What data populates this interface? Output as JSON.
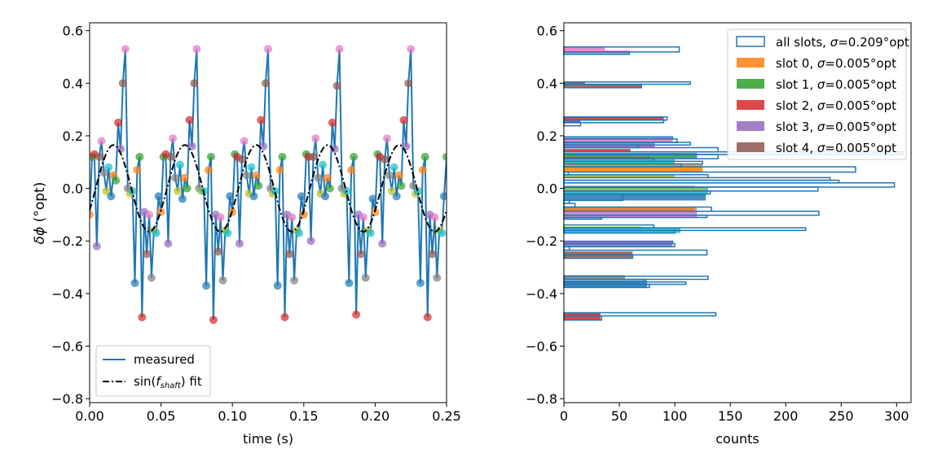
{
  "colors": [
    "#1f77b4",
    "#ff7f0e",
    "#2ca02c",
    "#d62728",
    "#9467bd",
    "#8c564b",
    "#e377c2",
    "#7f7f7f",
    "#bcbd22",
    "#17becf"
  ],
  "chart_data": [
    {
      "type": "line",
      "xlabel": "time (s)",
      "ylabel_symbol": "δϕ",
      "ylabel_unit": " (°opt)",
      "xlim": [
        0,
        0.25
      ],
      "ylim": [
        -0.815,
        0.63
      ],
      "xticks": [
        "0.00",
        "0.05",
        "0.10",
        "0.15",
        "0.20",
        "0.25"
      ],
      "yticks": [
        "−0.8",
        "−0.6",
        "−0.4",
        "−0.2",
        "0.0",
        "0.2",
        "0.4",
        "0.6"
      ],
      "legend_position": "lower-left",
      "legend": [
        "measured",
        "sin(",
        "f",
        "shaft",
        ") fit"
      ],
      "series": [
        {
          "name": "measured",
          "color": "#1f77b4",
          "x": [
            0,
            0.0017,
            0.0033,
            0.005,
            0.0067,
            0.0083,
            0.01,
            0.0117,
            0.0133,
            0.015,
            0.0167,
            0.0183,
            0.02,
            0.0217,
            0.0233,
            0.025,
            0.0267,
            0.0283,
            0.03,
            0.0317,
            0.0333,
            0.035,
            0.0367,
            0.0383,
            0.04,
            0.0417,
            0.0433,
            0.045,
            0.0467,
            0.0483,
            0.05,
            0.0517,
            0.0533,
            0.055,
            0.0567,
            0.0583,
            0.06,
            0.0617,
            0.0633,
            0.065,
            0.0667,
            0.0683,
            0.07,
            0.0717,
            0.0733,
            0.075,
            0.0767,
            0.0783,
            0.08,
            0.0817,
            0.0833,
            0.085,
            0.0867,
            0.0883,
            0.09,
            0.0917,
            0.0933,
            0.095,
            0.0967,
            0.0983,
            0.1,
            0.1017,
            0.1033,
            0.105,
            0.1067,
            0.1083,
            0.11,
            0.1117,
            0.1133,
            0.115,
            0.1167,
            0.1183,
            0.12,
            0.1217,
            0.1233,
            0.125,
            0.1267,
            0.1283,
            0.13,
            0.1317,
            0.1333,
            0.135,
            0.1367,
            0.1383,
            0.14,
            0.1417,
            0.1433,
            0.145,
            0.1467,
            0.1483,
            0.15,
            0.1517,
            0.1533,
            0.155,
            0.1567,
            0.1583,
            0.16,
            0.1617,
            0.1633,
            0.165,
            0.1667,
            0.1683,
            0.17,
            0.1717,
            0.1733,
            0.175,
            0.1767,
            0.1783,
            0.18,
            0.1817,
            0.1833,
            0.185,
            0.1867,
            0.1883,
            0.19,
            0.1917,
            0.1933,
            0.195,
            0.1967,
            0.1983,
            0.2,
            0.2017,
            0.2033,
            0.205,
            0.2067,
            0.2083,
            0.21,
            0.2117,
            0.2133,
            0.215,
            0.2167,
            0.2183,
            0.22,
            0.2217,
            0.2233,
            0.225,
            0.2267,
            0.2283,
            0.23,
            0.2317,
            0.2333,
            0.235,
            0.2367,
            0.2383,
            0.24,
            0.2417,
            0.2433,
            0.245,
            0.2467,
            0.2483,
            0.25
          ],
          "y": [
            -0.1,
            0.12,
            0.13,
            -0.22,
            0.12,
            0.18,
            0.06,
            -0.01,
            0.08,
            -0.03,
            0.05,
            0.03,
            0.25,
            0.15,
            0.4,
            0.53,
            0.0,
            -0.02,
            -0.01,
            -0.36,
            0.07,
            0.12,
            -0.49,
            -0.09,
            -0.25,
            -0.1,
            -0.34,
            -0.16,
            -0.17,
            -0.03,
            -0.09,
            0.12,
            0.13,
            -0.21,
            0.12,
            0.19,
            0.04,
            -0.01,
            0.09,
            -0.04,
            0.04,
            0.0,
            0.26,
            0.16,
            0.4,
            0.53,
            0.0,
            -0.01,
            -0.01,
            -0.37,
            0.07,
            0.12,
            -0.5,
            -0.1,
            -0.24,
            -0.11,
            -0.35,
            -0.16,
            -0.17,
            -0.03,
            -0.09,
            0.13,
            0.12,
            -0.21,
            0.11,
            0.18,
            0.05,
            -0.02,
            0.08,
            -0.03,
            0.05,
            0.01,
            0.26,
            0.16,
            0.4,
            0.53,
            0.0,
            -0.02,
            -0.01,
            -0.37,
            0.07,
            0.12,
            -0.49,
            -0.1,
            -0.25,
            -0.11,
            -0.35,
            -0.16,
            -0.17,
            -0.03,
            -0.1,
            0.13,
            0.12,
            -0.2,
            0.12,
            0.19,
            0.04,
            -0.02,
            0.09,
            -0.03,
            0.04,
            0.0,
            0.25,
            0.15,
            0.39,
            0.53,
            0.0,
            -0.02,
            -0.01,
            -0.36,
            0.07,
            0.12,
            -0.48,
            -0.1,
            -0.25,
            -0.11,
            -0.34,
            -0.16,
            -0.17,
            -0.04,
            -0.09,
            0.13,
            0.12,
            -0.21,
            0.11,
            0.19,
            0.05,
            -0.01,
            0.08,
            -0.03,
            0.05,
            0.01,
            0.26,
            0.16,
            0.4,
            0.53,
            0.01,
            -0.02,
            -0.01,
            -0.36,
            0.07,
            0.12,
            -0.49,
            -0.1,
            -0.25,
            -0.11,
            -0.34,
            -0.16,
            -0.17,
            -0.03,
            0.12
          ],
          "slot": [
            1,
            2,
            3,
            4,
            5,
            6,
            7,
            8,
            9,
            0,
            1,
            2,
            3,
            4,
            5,
            6,
            7,
            8,
            9,
            0,
            1,
            2,
            3,
            4,
            5,
            6,
            7,
            8,
            9,
            0,
            1,
            2,
            3,
            4,
            5,
            6,
            7,
            8,
            9,
            0,
            1,
            2,
            3,
            4,
            5,
            6,
            7,
            8,
            9,
            0,
            1,
            2,
            3,
            4,
            5,
            6,
            7,
            8,
            9,
            0,
            1,
            2,
            3,
            4,
            5,
            6,
            7,
            8,
            9,
            0,
            1,
            2,
            3,
            4,
            5,
            6,
            7,
            8,
            9,
            0,
            1,
            2,
            3,
            4,
            5,
            6,
            7,
            8,
            9,
            0,
            1,
            2,
            3,
            4,
            5,
            6,
            7,
            8,
            9,
            0,
            1,
            2,
            3,
            4,
            5,
            6,
            7,
            8,
            9,
            0,
            1,
            2,
            3,
            4,
            5,
            6,
            7,
            8,
            9,
            0,
            1,
            2,
            3,
            4,
            5,
            6,
            7,
            8,
            9,
            0,
            1,
            2,
            3,
            4,
            5,
            6,
            7,
            8,
            9,
            0,
            1,
            2,
            3,
            4,
            5,
            6,
            7,
            8,
            9,
            0,
            2
          ]
        },
        {
          "name": "sin(f_shaft) fit",
          "color": "#000000",
          "style": "dash-dot",
          "amplitude": 0.165,
          "period_s": 0.05,
          "peak_time_s": 0.0167
        }
      ]
    },
    {
      "type": "histogram",
      "orientation": "horizontal",
      "xlabel": "counts",
      "xlim": [
        0,
        313
      ],
      "ylim": [
        -0.815,
        0.63
      ],
      "xticks": [
        "0",
        "50",
        "100",
        "150",
        "200",
        "250",
        "300"
      ],
      "yticks": [
        "−0.8",
        "−0.6",
        "−0.4",
        "−0.2",
        "0.0",
        "0.2",
        "0.4",
        "0.6"
      ],
      "legend_position": "top-right",
      "legend": [
        {
          "label": "all slots, ",
          "sigma": "=0.209°opt",
          "style": "outline"
        },
        {
          "label": "slot 0, ",
          "sigma": "=0.005°opt",
          "slot": 1
        },
        {
          "label": "slot 1, ",
          "sigma": "=0.005°opt",
          "slot": 2
        },
        {
          "label": "slot 2, ",
          "sigma": "=0.005°opt",
          "slot": 3
        },
        {
          "label": "slot 3, ",
          "sigma": "=0.005°opt",
          "slot": 4
        },
        {
          "label": "slot 4, ",
          "sigma": "=0.005°opt",
          "slot": 5
        }
      ],
      "sigma_symbol": "σ",
      "all_slots_bins": [
        [
          0.519,
          0.538,
          104
        ],
        [
          0.51,
          0.519,
          59
        ],
        [
          0.383,
          0.396,
          70
        ],
        [
          0.396,
          0.405,
          114
        ],
        [
          0.26,
          0.272,
          93
        ],
        [
          0.25,
          0.26,
          90
        ],
        [
          0.238,
          0.25,
          15
        ],
        [
          0.188,
          0.196,
          98
        ],
        [
          0.175,
          0.188,
          102
        ],
        [
          0.165,
          0.175,
          114
        ],
        [
          0.155,
          0.165,
          67
        ],
        [
          0.139,
          0.155,
          139
        ],
        [
          0.129,
          0.139,
          306
        ],
        [
          0.113,
          0.129,
          139
        ],
        [
          0.103,
          0.113,
          81
        ],
        [
          0.093,
          0.103,
          125
        ],
        [
          0.082,
          0.093,
          106
        ],
        [
          0.062,
          0.082,
          263
        ],
        [
          0.052,
          0.062,
          4
        ],
        [
          0.041,
          0.052,
          130
        ],
        [
          0.031,
          0.041,
          240
        ],
        [
          0.021,
          0.031,
          248
        ],
        [
          0.005,
          0.021,
          298
        ],
        [
          -0.01,
          0.005,
          229
        ],
        [
          -0.021,
          -0.01,
          132
        ],
        [
          -0.046,
          -0.021,
          53
        ],
        [
          -0.057,
          -0.046,
          5
        ],
        [
          -0.071,
          -0.057,
          10
        ],
        [
          -0.087,
          -0.071,
          133
        ],
        [
          -0.102,
          -0.087,
          230
        ],
        [
          -0.111,
          -0.102,
          129
        ],
        [
          -0.117,
          -0.111,
          34
        ],
        [
          -0.15,
          -0.139,
          81
        ],
        [
          -0.16,
          -0.15,
          218
        ],
        [
          -0.17,
          -0.16,
          100
        ],
        [
          -0.21,
          -0.201,
          98
        ],
        [
          -0.222,
          -0.21,
          100
        ],
        [
          -0.235,
          -0.222,
          5
        ],
        [
          -0.253,
          -0.235,
          129
        ],
        [
          -0.266,
          -0.253,
          62
        ],
        [
          -0.346,
          -0.334,
          130
        ],
        [
          -0.356,
          -0.346,
          73
        ],
        [
          -0.365,
          -0.356,
          110
        ],
        [
          -0.377,
          -0.365,
          77
        ],
        [
          -0.485,
          -0.473,
          137
        ],
        [
          -0.501,
          -0.485,
          34
        ]
      ],
      "slot_bins": [
        [
          6,
          0.525,
          0.538,
          37
        ],
        [
          6,
          0.512,
          0.525,
          59
        ],
        [
          5,
          0.396,
          0.405,
          19
        ],
        [
          5,
          0.383,
          0.396,
          70
        ],
        [
          3,
          0.26,
          0.272,
          90
        ],
        [
          3,
          0.248,
          0.26,
          15
        ],
        [
          6,
          0.175,
          0.196,
          98
        ],
        [
          4,
          0.155,
          0.175,
          82
        ],
        [
          3,
          0.139,
          0.15,
          60
        ],
        [
          2,
          0.113,
          0.135,
          120
        ],
        [
          5,
          0.113,
          0.12,
          78
        ],
        [
          9,
          0.093,
          0.11,
          100
        ],
        [
          1,
          0.062,
          0.09,
          125
        ],
        [
          8,
          0.041,
          0.052,
          100
        ],
        [
          7,
          -0.005,
          0.01,
          118
        ],
        [
          9,
          -0.021,
          0.005,
          130
        ],
        [
          8,
          -0.01,
          0.0,
          128
        ],
        [
          0,
          -0.046,
          -0.021,
          128
        ],
        [
          6,
          -0.111,
          -0.071,
          120
        ],
        [
          1,
          -0.087,
          -0.071,
          118
        ],
        [
          8,
          -0.155,
          -0.145,
          70
        ],
        [
          9,
          -0.17,
          -0.15,
          105
        ],
        [
          4,
          -0.222,
          -0.201,
          98
        ],
        [
          5,
          -0.266,
          -0.24,
          62
        ],
        [
          7,
          -0.346,
          -0.33,
          55
        ],
        [
          0,
          -0.377,
          -0.35,
          75
        ],
        [
          3,
          -0.501,
          -0.473,
          33
        ]
      ]
    }
  ]
}
